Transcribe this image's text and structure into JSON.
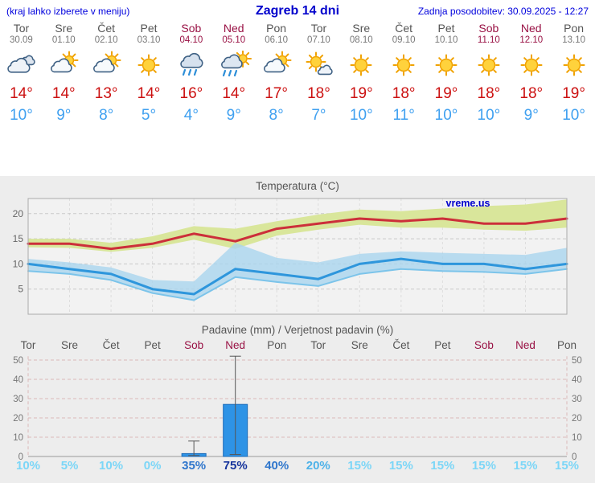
{
  "header": {
    "left": "(kraj lahko izberete v meniju)",
    "title": "Zagreb 14 dni",
    "right": "Zadnja posodobitev: 30.09.2025 - 12:27"
  },
  "days": [
    {
      "name": "Tor",
      "date": "30.09",
      "icon": "cloudy",
      "tmax_label": "14°",
      "tmin_label": "10°",
      "weekend": false
    },
    {
      "name": "Sre",
      "date": "01.10",
      "icon": "partly-cloudy",
      "tmax_label": "14°",
      "tmin_label": "9°",
      "weekend": false
    },
    {
      "name": "Čet",
      "date": "02.10",
      "icon": "partly-cloudy",
      "tmax_label": "13°",
      "tmin_label": "8°",
      "weekend": false
    },
    {
      "name": "Pet",
      "date": "03.10",
      "icon": "sunny",
      "tmax_label": "14°",
      "tmin_label": "5°",
      "weekend": false
    },
    {
      "name": "Sob",
      "date": "04.10",
      "icon": "rain",
      "tmax_label": "16°",
      "tmin_label": "4°",
      "weekend": true
    },
    {
      "name": "Ned",
      "date": "05.10",
      "icon": "rain-sun",
      "tmax_label": "14°",
      "tmin_label": "9°",
      "weekend": true
    },
    {
      "name": "Pon",
      "date": "06.10",
      "icon": "partly-cloudy",
      "tmax_label": "17°",
      "tmin_label": "8°",
      "weekend": false
    },
    {
      "name": "Tor",
      "date": "07.10",
      "icon": "mostly-sunny",
      "tmax_label": "18°",
      "tmin_label": "7°",
      "weekend": false
    },
    {
      "name": "Sre",
      "date": "08.10",
      "icon": "sunny",
      "tmax_label": "19°",
      "tmin_label": "10°",
      "weekend": false
    },
    {
      "name": "Čet",
      "date": "09.10",
      "icon": "sunny",
      "tmax_label": "18°",
      "tmin_label": "11°",
      "weekend": false
    },
    {
      "name": "Pet",
      "date": "10.10",
      "icon": "sunny",
      "tmax_label": "19°",
      "tmin_label": "10°",
      "weekend": false
    },
    {
      "name": "Sob",
      "date": "11.10",
      "icon": "sunny",
      "tmax_label": "18°",
      "tmin_label": "10°",
      "weekend": true
    },
    {
      "name": "Ned",
      "date": "12.10",
      "icon": "sunny",
      "tmax_label": "18°",
      "tmin_label": "9°",
      "weekend": true
    },
    {
      "name": "Pon",
      "date": "13.10",
      "icon": "sunny",
      "tmax_label": "19°",
      "tmin_label": "10°",
      "weekend": false
    }
  ],
  "charts": {
    "temperature_title": "Temperatura (°C)",
    "precipitation_title": "Padavine (mm) / Verjetnost padavin (%)"
  },
  "chart_data": [
    {
      "type": "line",
      "title": "Temperatura (°C)",
      "x_labels": [
        "Tor",
        "Sre",
        "Čet",
        "Pet",
        "Sob",
        "Ned",
        "Pon",
        "Tor",
        "Sre",
        "Čet",
        "Pet",
        "Sob",
        "Ned",
        "Pon"
      ],
      "ylim": [
        0,
        23
      ],
      "yticks": [
        5,
        10,
        15,
        20
      ],
      "watermark": "vreme.us",
      "series": [
        {
          "name": "t_max",
          "values": [
            14,
            14,
            13,
            14,
            16,
            14.5,
            17,
            18,
            19,
            18.5,
            19,
            18,
            18,
            19
          ]
        },
        {
          "name": "t_min",
          "values": [
            10,
            9,
            8,
            5,
            4,
            9,
            8,
            7,
            10,
            11,
            10,
            10,
            9,
            10
          ]
        },
        {
          "name": "t_max_range_upper",
          "values": [
            15,
            15,
            14.2,
            15.5,
            17.5,
            17,
            18.5,
            19.8,
            20.8,
            20.5,
            21,
            21.5,
            21.8,
            22.8
          ]
        },
        {
          "name": "t_max_range_lower",
          "values": [
            13.3,
            13.2,
            12.4,
            13.2,
            14.8,
            13,
            15.6,
            16.8,
            17.8,
            17.2,
            17.2,
            16.8,
            16.6,
            17.2
          ]
        },
        {
          "name": "t_min_range_upper",
          "values": [
            11,
            10.3,
            9.3,
            6.8,
            6.5,
            14.2,
            11.2,
            10.3,
            12,
            12.5,
            12.2,
            12,
            11.8,
            13.2
          ]
        },
        {
          "name": "t_min_range_lower",
          "values": [
            8.6,
            8,
            6.8,
            4.2,
            2.8,
            7.4,
            6.4,
            5.6,
            8,
            9,
            8.6,
            8.4,
            8,
            9
          ]
        }
      ]
    },
    {
      "type": "bar",
      "title": "Padavine (mm) / Verjetnost padavin (%)",
      "categories": [
        "Tor",
        "Sre",
        "Čet",
        "Pet",
        "Sob",
        "Ned",
        "Pon",
        "Tor",
        "Sre",
        "Čet",
        "Pet",
        "Sob",
        "Ned",
        "Pon"
      ],
      "weekend": [
        4,
        5,
        11,
        12
      ],
      "values": [
        0,
        0,
        0,
        0,
        1.5,
        27,
        0,
        0,
        0,
        0,
        0,
        0,
        0,
        0
      ],
      "whisker_low": [
        0,
        0,
        0,
        0,
        0.5,
        1,
        0,
        0,
        0,
        0,
        0,
        0,
        0,
        0
      ],
      "whisker_high": [
        0,
        0,
        0,
        0,
        8,
        52,
        0,
        0,
        0,
        0,
        0,
        0,
        0,
        0
      ],
      "probabilities": [
        10,
        5,
        10,
        0,
        35,
        75,
        40,
        20,
        15,
        15,
        15,
        15,
        15,
        15
      ],
      "prob_labels": [
        "10%",
        "5%",
        "10%",
        "0%",
        "35%",
        "75%",
        "40%",
        "20%",
        "15%",
        "15%",
        "15%",
        "15%",
        "15%",
        "15%"
      ],
      "ylim": [
        0,
        55
      ],
      "yticks": [
        0,
        10,
        20,
        30,
        40,
        50
      ]
    }
  ],
  "colors": {
    "header_blue": "#0000cc",
    "weekend_red": "#991144",
    "temp_high_red": "#cc1111",
    "temp_low_blue": "#3fa0f0",
    "bar_blue": "#2e93e6",
    "band_warm": "#d9e69b",
    "band_cold": "#a9d4ee",
    "line_max": "#cc2f3a",
    "line_min": "#2e96dc",
    "prob_light": "#7cd6f7",
    "prob_mid": "#4fb2e8",
    "prob_high": "#2f76cc",
    "prob_max": "#16349c"
  }
}
